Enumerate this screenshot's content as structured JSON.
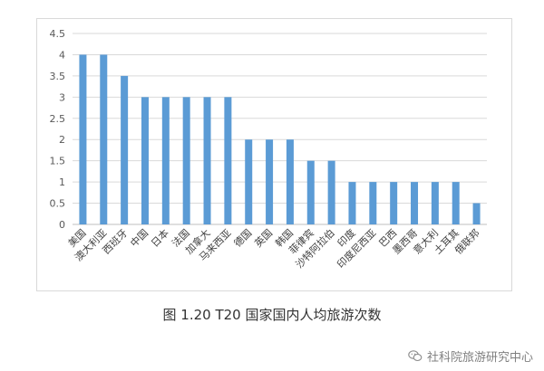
{
  "caption": "图 1.20 T20 国家国内人均旅游次数",
  "watermark": "社科院旅游研究中心",
  "watermark_icon": "wechat-icon",
  "colors": {
    "bar": "#5b9bd5",
    "grid": "#d9d9d9",
    "axis": "#bfbfbf"
  },
  "chart_data": {
    "type": "bar",
    "title": "",
    "xlabel": "",
    "ylabel": "",
    "ylim": [
      0,
      4.5
    ],
    "yticks": [
      "0",
      "0.5",
      "1",
      "1.5",
      "2",
      "2.5",
      "3",
      "3.5",
      "4",
      "4.5"
    ],
    "grid": true,
    "legend": "none",
    "categories": [
      "美国",
      "澳大利亚",
      "西班牙",
      "中国",
      "日本",
      "法国",
      "加拿大",
      "马来西亚",
      "德国",
      "英国",
      "韩国",
      "菲律宾",
      "沙特阿拉伯",
      "印度",
      "印度尼西亚",
      "巴西",
      "墨西哥",
      "意大利",
      "土耳其",
      "俄联邦"
    ],
    "values": [
      4,
      4,
      3.5,
      3,
      3,
      3,
      3,
      3,
      2,
      2,
      2,
      1.5,
      1.5,
      1,
      1,
      1,
      1,
      1,
      1,
      0.5
    ]
  }
}
